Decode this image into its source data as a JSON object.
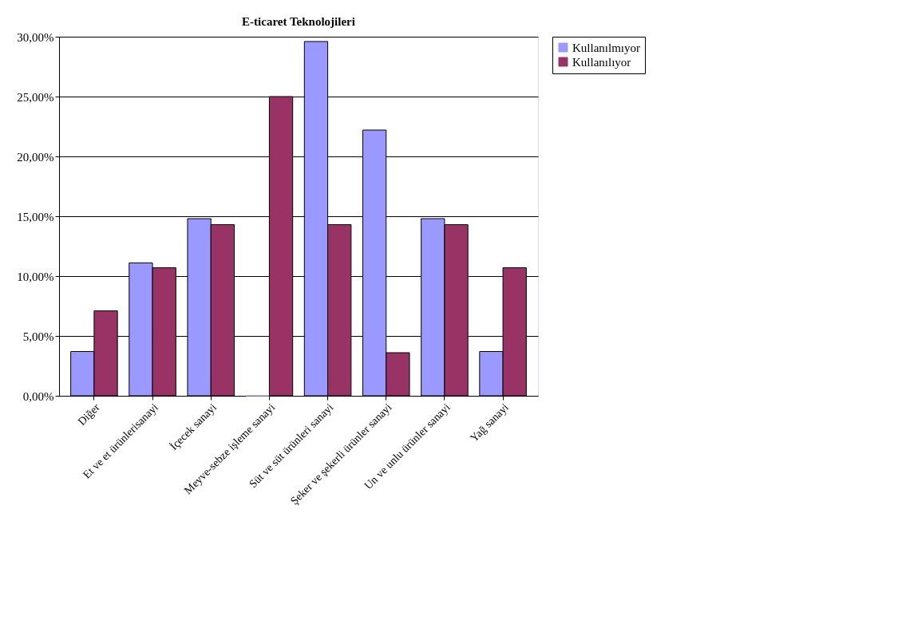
{
  "chart_data": {
    "type": "bar",
    "title": "E-ticaret Teknolojileri",
    "categories": [
      "Diğer",
      "Et ve et ürünlerisanayi",
      "İçecek sanayi",
      "Meyve-sebze işleme sanayi",
      "Süt ve  süt ürünleri sanayi",
      "Şeker ve şekerli ürünler sanayi",
      "Un ve unlu ürünler sanayi",
      "Yağ sanayi"
    ],
    "series": [
      {
        "name": "Kullanılmıyor",
        "color": "#9999ff",
        "values": [
          3.7,
          11.1,
          14.8,
          0,
          29.6,
          22.2,
          14.8,
          3.7
        ]
      },
      {
        "name": "Kullanılıyor",
        "color": "#993366",
        "values": [
          7.1,
          10.7,
          14.3,
          25,
          14.3,
          3.6,
          14.3,
          10.7
        ]
      }
    ],
    "ylim": [
      0,
      30
    ],
    "yticks": [
      {
        "value": 0,
        "label": "0,00%"
      },
      {
        "value": 5,
        "label": "5,00%"
      },
      {
        "value": 10,
        "label": "10,00%"
      },
      {
        "value": 15,
        "label": "15,00%"
      },
      {
        "value": 20,
        "label": "20,00%"
      },
      {
        "value": 25,
        "label": "25,00%"
      },
      {
        "value": 30,
        "label": "30,00%"
      }
    ],
    "grid": "y",
    "legend": "right"
  }
}
